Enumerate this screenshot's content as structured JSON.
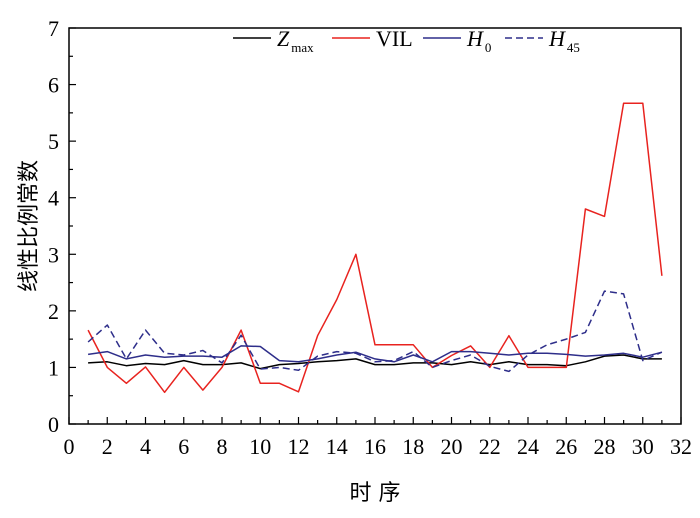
{
  "chart_data": {
    "type": "line",
    "xlabel": "时 序",
    "ylabel": "线性比例常数",
    "xlim": [
      0,
      32
    ],
    "ylim": [
      0,
      7
    ],
    "xticks": [
      "0",
      "2",
      "4",
      "6",
      "8",
      "10",
      "12",
      "14",
      "16",
      "18",
      "20",
      "22",
      "24",
      "26",
      "28",
      "30",
      "32"
    ],
    "yticks": [
      "0",
      "1",
      "2",
      "3",
      "4",
      "5",
      "6",
      "7"
    ],
    "grid": false,
    "legend_position": "top",
    "x": [
      1,
      2,
      3,
      4,
      5,
      6,
      7,
      8,
      9,
      10,
      11,
      12,
      13,
      14,
      15,
      16,
      17,
      18,
      19,
      20,
      21,
      22,
      23,
      24,
      25,
      26,
      27,
      28,
      29,
      30,
      31
    ],
    "series": [
      {
        "name": "Z",
        "name_subscript": "max",
        "color": "#000000",
        "dash": "solid",
        "values": [
          1.08,
          1.1,
          1.03,
          1.07,
          1.05,
          1.12,
          1.05,
          1.05,
          1.08,
          0.98,
          1.05,
          1.07,
          1.1,
          1.12,
          1.15,
          1.05,
          1.05,
          1.08,
          1.08,
          1.05,
          1.1,
          1.05,
          1.1,
          1.05,
          1.05,
          1.03,
          1.1,
          1.2,
          1.22,
          1.15,
          1.15
        ]
      },
      {
        "name": "VIL",
        "name_subscript": "",
        "color": "#e8231f",
        "dash": "solid",
        "values": [
          1.66,
          1.0,
          0.72,
          1.01,
          0.56,
          1.0,
          0.6,
          1.0,
          1.66,
          0.72,
          0.72,
          0.57,
          1.56,
          2.2,
          3.0,
          1.4,
          1.4,
          1.4,
          1.0,
          1.21,
          1.38,
          1.0,
          1.56,
          1.0,
          1.0,
          1.0,
          3.8,
          3.67,
          5.67,
          5.67,
          2.62
        ]
      },
      {
        "name": "H",
        "name_subscript": "0",
        "color": "#2e2e8a",
        "dash": "solid",
        "values": [
          1.23,
          1.28,
          1.15,
          1.22,
          1.18,
          1.2,
          1.2,
          1.18,
          1.38,
          1.37,
          1.12,
          1.1,
          1.15,
          1.22,
          1.27,
          1.15,
          1.1,
          1.22,
          1.1,
          1.28,
          1.28,
          1.25,
          1.22,
          1.25,
          1.25,
          1.23,
          1.2,
          1.22,
          1.25,
          1.18,
          1.27
        ]
      },
      {
        "name": "H",
        "name_subscript": "45",
        "color": "#2e2e8a",
        "dash": "dashed",
        "values": [
          1.45,
          1.75,
          1.15,
          1.66,
          1.25,
          1.22,
          1.3,
          1.08,
          1.57,
          0.97,
          1.0,
          0.95,
          1.2,
          1.28,
          1.25,
          1.1,
          1.12,
          1.28,
          1.0,
          1.12,
          1.22,
          1.02,
          0.93,
          1.22,
          1.4,
          1.5,
          1.62,
          2.35,
          2.3,
          1.12,
          1.27
        ]
      }
    ]
  }
}
